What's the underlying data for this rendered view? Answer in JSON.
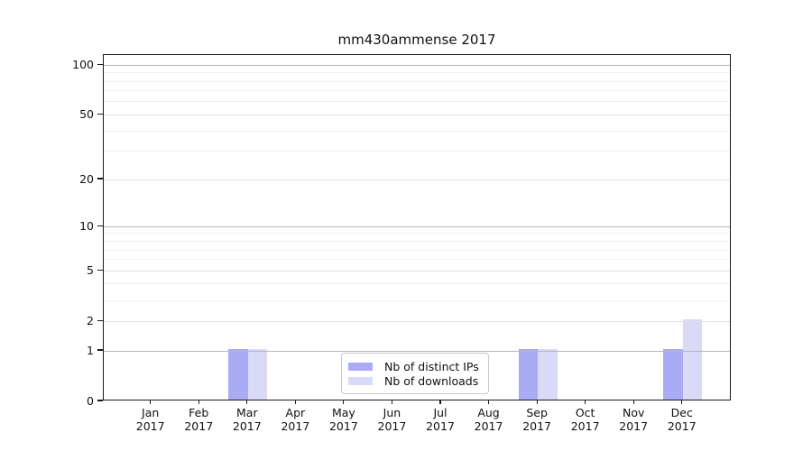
{
  "page": {
    "title": "mm430ammense 2017"
  },
  "chart_data": {
    "type": "bar",
    "title": "mm430ammense 2017",
    "categories": [
      "Jan 2017",
      "Feb 2017",
      "Mar 2017",
      "Apr 2017",
      "May 2017",
      "Jun 2017",
      "Jul 2017",
      "Aug 2017",
      "Sep 2017",
      "Oct 2017",
      "Nov 2017",
      "Dec 2017"
    ],
    "x_tick_labels": [
      {
        "line1": "Jan",
        "line2": "2017"
      },
      {
        "line1": "Feb",
        "line2": "2017"
      },
      {
        "line1": "Mar",
        "line2": "2017"
      },
      {
        "line1": "Apr",
        "line2": "2017"
      },
      {
        "line1": "May",
        "line2": "2017"
      },
      {
        "line1": "Jun",
        "line2": "2017"
      },
      {
        "line1": "Jul",
        "line2": "2017"
      },
      {
        "line1": "Aug",
        "line2": "2017"
      },
      {
        "line1": "Sep",
        "line2": "2017"
      },
      {
        "line1": "Oct",
        "line2": "2017"
      },
      {
        "line1": "Nov",
        "line2": "2017"
      },
      {
        "line1": "Dec",
        "line2": "2017"
      }
    ],
    "series": [
      {
        "name": "Nb of distinct IPs",
        "color": "#aaaaf5",
        "values": [
          0,
          0,
          1,
          0,
          0,
          0,
          0,
          0,
          1,
          0,
          0,
          1
        ]
      },
      {
        "name": "Nb of downloads",
        "color": "#d9d9f8",
        "values": [
          0,
          0,
          1,
          0,
          0,
          0,
          0,
          0,
          1,
          0,
          0,
          2
        ]
      }
    ],
    "y_axis": {
      "scale": "log1p",
      "labeled_ticks": [
        0,
        1,
        2,
        5,
        10,
        20,
        50,
        100
      ],
      "decade_gridlines": [
        1,
        10,
        100
      ],
      "mid_gridlines": [
        2,
        5,
        20,
        50
      ],
      "minor_gridlines": [
        3,
        4,
        6,
        7,
        8,
        9,
        30,
        40,
        60,
        70,
        80,
        90
      ],
      "top_value": 115,
      "ylim": [
        0,
        115
      ]
    },
    "legend": {
      "position": "lower center",
      "items": [
        "Nb of distinct IPs",
        "Nb of downloads"
      ]
    },
    "grid": "horizontal",
    "colors": {
      "background": "#ffffff",
      "bar_distinct_ips": "#aaaaf5",
      "bar_downloads": "#d9d9f8",
      "grid_decade": "#b8b8b8",
      "grid_mid": "#e0e0e0",
      "grid_minor": "#f0f0f0",
      "spine": "#1a1a1a",
      "legend_border": "#c9c9c9",
      "text": "#111111"
    }
  }
}
